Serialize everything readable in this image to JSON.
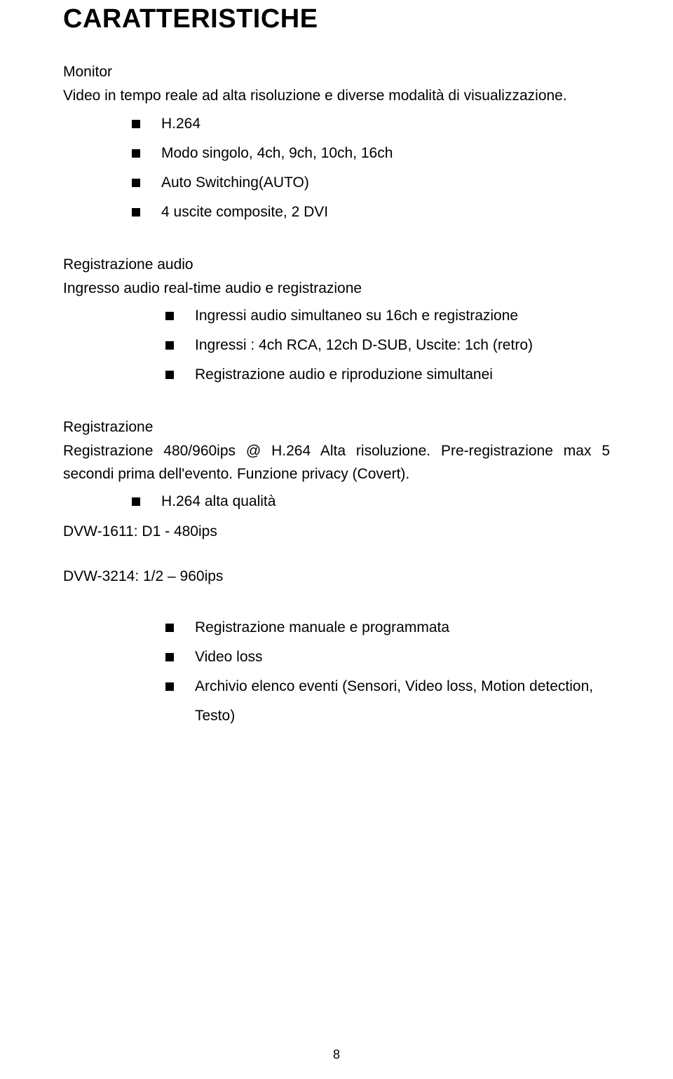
{
  "page": {
    "title": "CARATTERISTICHE",
    "page_number": "8",
    "text_color": "#000000",
    "background_color": "#ffffff"
  },
  "monitor": {
    "heading": "Monitor",
    "intro": "Video in tempo reale ad alta risoluzione e diverse modalità di visualizzazione.",
    "bullets": [
      "H.264",
      "Modo singolo, 4ch, 9ch, 10ch, 16ch",
      "Auto Switching(AUTO)",
      "4 uscite composite, 2 DVI"
    ]
  },
  "reg_audio": {
    "heading": "Registrazione audio",
    "intro": "Ingresso audio real-time audio e registrazione",
    "bullets": [
      "Ingressi audio simultaneo su 16ch e registrazione",
      "Ingressi : 4ch RCA, 12ch D-SUB, Uscite: 1ch (retro)",
      "Registrazione audio e riproduzione simultanei"
    ]
  },
  "reg": {
    "heading": "Registrazione",
    "intro": "Registrazione 480/960ips @ H.264 Alta risoluzione. Pre-registrazione max 5 secondi prima dell'evento. Funzione privacy (Covert).",
    "bullets_top": [
      "H.264 alta qualità"
    ],
    "models": [
      "DVW-1611:   D1  -  480ips",
      "DVW-3214:   1/2 – 960ips"
    ],
    "bullets_bottom": [
      "Registrazione manuale e programmata",
      "Video loss",
      "Archivio elenco eventi (Sensori, Video loss, Motion detection, Testo)"
    ]
  }
}
